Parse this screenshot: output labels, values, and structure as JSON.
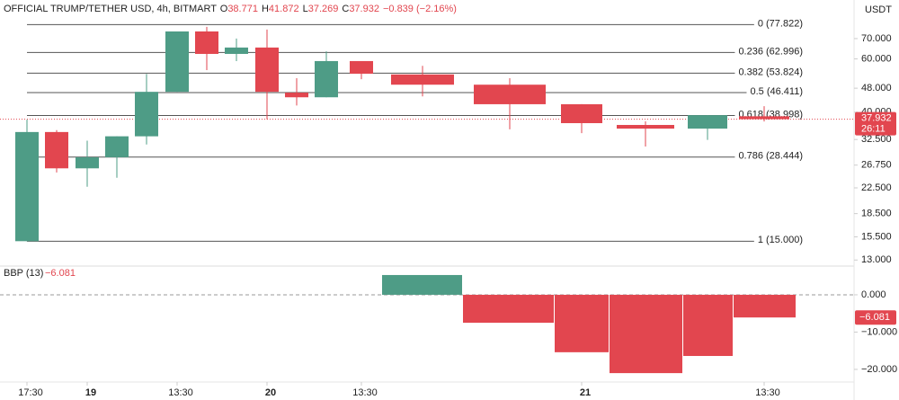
{
  "chart_data": [
    {
      "type": "candlestick",
      "title": "OFFICIAL TRUMP/TETHER USD, 4h, BITMART",
      "unit": "USDT",
      "header": {
        "labels": [
          "O",
          "H",
          "L",
          "C"
        ],
        "open": 38.771,
        "high": 41.872,
        "low": 37.269,
        "close": 37.932,
        "change": "−0.839 (−2.16%)"
      },
      "categories": [
        "17:30",
        null,
        "19",
        null,
        null,
        "13:30",
        null,
        null,
        "20",
        null,
        null,
        "13:30",
        null,
        null,
        "21",
        null,
        null,
        "13:30"
      ],
      "bold_categories": [
        "19",
        "20",
        "21"
      ],
      "series": {
        "open": [
          15.0,
          34.4,
          26.1,
          28.4,
          33.3,
          46.7,
          73.9,
          62.3,
          65.4,
          46.4,
          44.8,
          59.0,
          53.3,
          49.3,
          42.5,
          36.3,
          35.3,
          38.771
        ],
        "high": [
          37.8,
          34.9,
          32.2,
          33.3,
          53.5,
          73.9,
          76.5,
          70.0,
          75.0,
          51.8,
          63.5,
          59.0,
          56.9,
          51.8,
          42.5,
          37.3,
          39.1,
          41.872
        ],
        "low": [
          15.0,
          25.3,
          22.7,
          24.3,
          31.3,
          46.7,
          55.1,
          59.0,
          37.9,
          42.1,
          44.8,
          51.4,
          45.1,
          35.1,
          34.1,
          30.8,
          32.4,
          37.269
        ],
        "close": [
          34.4,
          26.1,
          28.4,
          33.3,
          46.7,
          73.9,
          62.3,
          65.4,
          46.7,
          44.8,
          59.0,
          53.6,
          49.3,
          42.5,
          36.8,
          35.3,
          39.1,
          37.932
        ]
      },
      "up_color": "#4e9c86",
      "down_color": "#e2464f",
      "log_scale": true,
      "ylim": [
        12.5,
        83
      ],
      "yticks": [
        {
          "value": 70,
          "label": "70.000"
        },
        {
          "value": 60,
          "label": "60.000"
        },
        {
          "value": 48,
          "label": "48.000"
        },
        {
          "value": 40,
          "label": "40.000"
        },
        {
          "value": 32.5,
          "label": "32.500"
        },
        {
          "value": 26.75,
          "label": "26.750"
        },
        {
          "value": 22.5,
          "label": "22.500"
        },
        {
          "value": 18.5,
          "label": "18.500"
        },
        {
          "value": 15.5,
          "label": "15.500"
        },
        {
          "value": 13,
          "label": "13.000"
        }
      ],
      "fib_levels": [
        {
          "label": "0 (77.822)",
          "value": 77.822
        },
        {
          "label": "0.236 (62.996)",
          "value": 62.996
        },
        {
          "label": "0.382 (53.824)",
          "value": 53.824
        },
        {
          "label": "0.5 (46.411)",
          "value": 46.411
        },
        {
          "label": "0.618 (38.998)",
          "value": 38.998
        },
        {
          "label": "0.786 (28.444)",
          "value": 28.444
        },
        {
          "label": "1 (15.000)",
          "value": 15.0
        }
      ],
      "last_price": 37.932,
      "countdown": "26:11"
    },
    {
      "type": "bar",
      "title": "BBP (13)",
      "values": [
        null,
        null,
        null,
        null,
        null,
        null,
        null,
        null,
        null,
        null,
        null,
        null,
        5.3,
        -7.5,
        -15.4,
        -21.0,
        -16.4,
        -6.081
      ],
      "last_value_label": "−6.081",
      "up_color": "#4e9c86",
      "down_color": "#e2464f",
      "ylim": [
        -27,
        7.7
      ],
      "yticks": [
        {
          "value": 0,
          "label": "0.000"
        },
        {
          "value": -10,
          "label": "−10.000"
        },
        {
          "value": -20,
          "label": "−20.000"
        }
      ]
    }
  ]
}
